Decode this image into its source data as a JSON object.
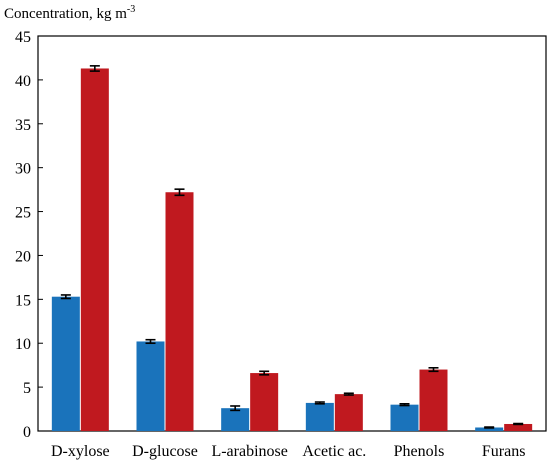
{
  "chart_data": {
    "type": "bar",
    "ylabel_main": "Concentration, kg m",
    "ylabel_sup": "-3",
    "categories": [
      "D-xylose",
      "D-glucose",
      "L-arabinose",
      "Acetic ac.",
      "Phenols",
      "Furans"
    ],
    "series": [
      {
        "values": [
          15.3,
          10.2,
          2.6,
          3.2,
          3.0,
          0.4
        ],
        "errors": [
          0.2,
          0.2,
          0.25,
          0.1,
          0.1,
          0.05
        ],
        "color": "#1a73bb"
      },
      {
        "values": [
          41.3,
          27.2,
          6.6,
          4.2,
          7.0,
          0.8
        ],
        "errors": [
          0.3,
          0.35,
          0.2,
          0.1,
          0.2,
          0.05
        ],
        "color": "#c0191f"
      }
    ],
    "ylim": [
      0,
      45
    ],
    "yticks": [
      0,
      5,
      10,
      15,
      20,
      25,
      30,
      35,
      40,
      45
    ],
    "grid": false,
    "error_bars": true
  }
}
